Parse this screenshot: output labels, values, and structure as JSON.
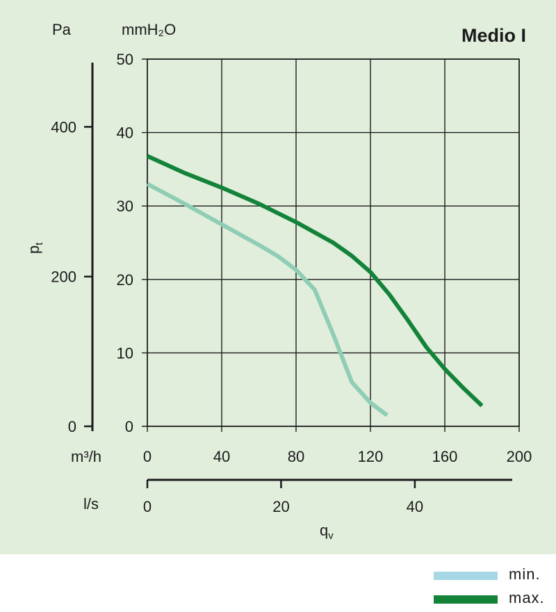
{
  "chart_data": {
    "type": "line",
    "title": "Medio I",
    "x_label": "q",
    "x_label_sub": "v",
    "y_label": "p",
    "y_label_sub": "t",
    "x_axis_m3h": {
      "unit_label": "m³/h",
      "range": [
        0,
        200
      ],
      "ticks": [
        "0",
        "40",
        "80",
        "120",
        "160",
        "200"
      ]
    },
    "x_axis_ls": {
      "unit_label": "l/s",
      "range": [
        0,
        55.6
      ],
      "ticks": [
        "0",
        "20",
        "40"
      ]
    },
    "y_axis_mmh2o": {
      "unit_label": "mmH₂O",
      "range": [
        0,
        50
      ],
      "ticks": [
        "0",
        "10",
        "20",
        "30",
        "40",
        "50"
      ]
    },
    "y_axis_pa": {
      "unit_label": "Pa",
      "range": [
        0,
        490.5
      ],
      "ticks": [
        "0",
        "200",
        "400"
      ]
    },
    "grid": true,
    "legend_position": "bottom-right",
    "series": [
      {
        "name": "min.",
        "color": "#8fcdb4",
        "x": [
          0,
          20,
          40,
          60,
          70,
          80,
          90,
          100,
          110,
          120,
          129
        ],
        "y": [
          33,
          30.3,
          27.5,
          24.7,
          23.2,
          21.3,
          18.6,
          12.5,
          6.0,
          3.2,
          1.5
        ]
      },
      {
        "name": "max.",
        "color": "#13833a",
        "x": [
          0,
          20,
          40,
          60,
          80,
          100,
          110,
          120,
          130,
          140,
          150,
          160,
          170,
          180
        ],
        "y": [
          36.8,
          34.5,
          32.5,
          30.3,
          27.8,
          25.0,
          23.2,
          21.0,
          18.0,
          14.5,
          10.8,
          7.8,
          5.2,
          2.8
        ]
      }
    ]
  },
  "legend": {
    "items": [
      {
        "label": "min.",
        "color": "#a5d8e4"
      },
      {
        "label": "max.",
        "color": "#13833a"
      }
    ]
  },
  "colors": {
    "panel_background": "#e2eedc",
    "grid": "#1a1a1a",
    "axis": "#1a1a1a"
  }
}
